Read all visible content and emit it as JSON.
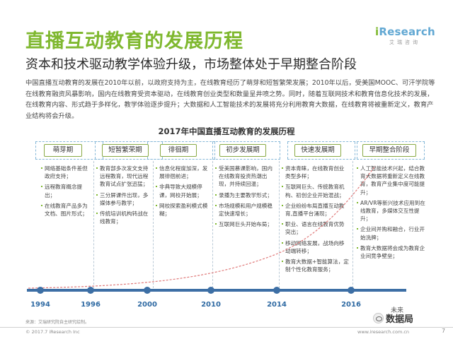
{
  "header": {
    "title": "直播互动教育的发展历程",
    "subtitle": "资本和技术驱动教学体验升级，市场整体处于早期整合阶段",
    "logo_text_i": "i",
    "logo_text_rest": "Research",
    "logo_sub": "艾瑞咨询"
  },
  "intro": "中国直播互动教育的发展在2010年以前，以政府支持为主，在线教育经历了萌芽和短暂繁荣发展；2010年以后，受美国MOOC、可汗学院等在线教育融资风暴影响，国内在线教育受资本驱动，在线教育创业类型和数量呈井喷之势。同时，随着互联网技术和教育信息化技术的发展，在线教育内容、形式趋于多样化，教学体验逐步提升；大数据和人工智能技术的发展将充分利用教育大数据，在线教育将被重新定义，教育产业结构将会升级。",
  "timeline": {
    "title": "2017年中国直播互动教育的发展历程",
    "phases": [
      "萌芽期",
      "短暂繁荣期",
      "徘徊期",
      "初步发展期",
      "快速发展期",
      "早期整合阶段"
    ],
    "columns": [
      [
        "网络基础条件差但政府支持；",
        "远程教育概念提出；",
        "在线教育产品多为文档、图片形式；"
      ],
      [
        "教育部多次发文支持远程教育，现代远程教育试点扩张迅猛；",
        "三分屏课件出现，多媒体参与教学；",
        "传统培训机构转战在线教育；"
      ],
      [
        "信息化程度加深，发展徘徊前进；",
        "非典导致大规模停课，网校开始展；",
        "网校探索盈利模式模糊；"
      ],
      [
        "受美国慕课影响，国内在线教育投资热潮出现，并持续回温；",
        "录播为主要教学形式；",
        "市场规模和用户规模稳定快速增长；",
        "互联网巨头开始布局；"
      ],
      [
        "资本青睐，在线教育创业类型多样；",
        "互联网巨头、传统教育机构、初创企业开始混战；",
        "企业纷纷布局直播互动教育,直播平台涌现；",
        "职业、语言在线教育优势突出；",
        "移动网络发展，战场向移动端转移；",
        "教育大数据+智能算法，定制个性化教育服务；"
      ],
      [
        "人工智能技术兴起，结合教育大数据将重新定义在线教育，教育产业集中度可能提升；",
        "AR/VR等新兴技术应用到在线教育，多媒体交互性提升；",
        "企业间并购和融合，行业开始洗牌；",
        "教育大数据将会成为教育企业间竞争壁垒；"
      ]
    ],
    "years": [
      "1994",
      "1996",
      "2000",
      "2010",
      "2014",
      "2016"
    ],
    "future_label": "未来"
  },
  "footer": {
    "source": "来源：艾瑞研究院自主研究绘制。",
    "copyright": "© 2017.7 iResearch Inc",
    "site": "www.iresearch.com.cn",
    "page_number": "7",
    "badge_text": "数据局",
    "badge_icon": "wechat-icon"
  },
  "colors": {
    "accent_green": "#7fb82f",
    "axis_blue": "#3d6fa5",
    "curve_red": "#e07a7a"
  }
}
